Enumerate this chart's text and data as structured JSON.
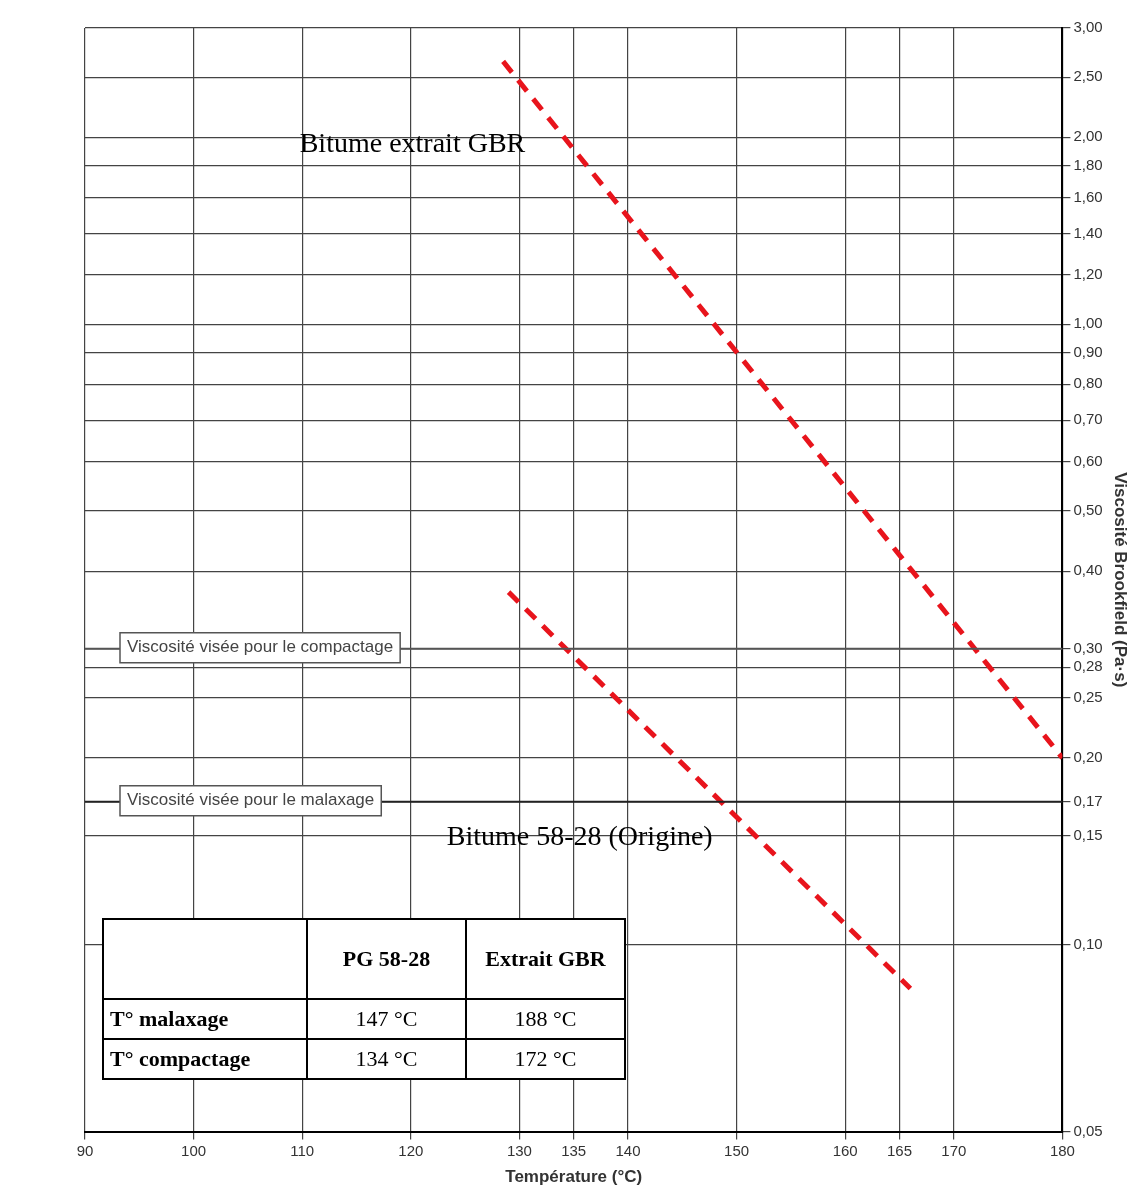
{
  "chart_data": {
    "type": "line",
    "xlabel": "Température (°C)",
    "ylabel": "Viscosité Brookfield (Pa·s)",
    "series": [
      {
        "name": "Bitume extrait GBR",
        "color": "#e8141c",
        "x": [
          128.5,
          180
        ],
        "values": [
          2.65,
          0.2
        ]
      },
      {
        "name": "Bitume 58-28 (Origine)",
        "color": "#e8141c",
        "x": [
          129,
          166
        ],
        "values": [
          0.37,
          0.085
        ]
      }
    ],
    "xlim": [
      90,
      180
    ],
    "xticks": [
      90,
      100,
      110,
      120,
      130,
      135,
      140,
      150,
      160,
      165,
      170,
      180
    ],
    "ylim": [
      0.05,
      3
    ],
    "yticks": [
      {
        "value": 3,
        "label": "3,00"
      },
      {
        "value": 2.5,
        "label": "2,50"
      },
      {
        "value": 2,
        "label": "2,00"
      },
      {
        "value": 1.8,
        "label": "1,80"
      },
      {
        "value": 1.6,
        "label": "1,60"
      },
      {
        "value": 1.4,
        "label": "1,40"
      },
      {
        "value": 1.2,
        "label": "1,20"
      },
      {
        "value": 1,
        "label": "1,00"
      },
      {
        "value": 0.9,
        "label": "0,90"
      },
      {
        "value": 0.8,
        "label": "0,80"
      },
      {
        "value": 0.7,
        "label": "0,70"
      },
      {
        "value": 0.6,
        "label": "0,60"
      },
      {
        "value": 0.5,
        "label": "0,50"
      },
      {
        "value": 0.4,
        "label": "0,40"
      },
      {
        "value": 0.3,
        "label": "0,30"
      },
      {
        "value": 0.28,
        "label": "0,28"
      },
      {
        "value": 0.25,
        "label": "0,25"
      },
      {
        "value": 0.2,
        "label": "0,20"
      },
      {
        "value": 0.17,
        "label": "0,17"
      },
      {
        "value": 0.15,
        "label": "0,15"
      },
      {
        "value": 0.1,
        "label": "0,10"
      },
      {
        "value": 0.05,
        "label": "0,05"
      }
    ],
    "log": "y",
    "grid": true,
    "legend": false,
    "marker": "none",
    "line_style": "dashed",
    "ref_lines": [
      {
        "axis": "y",
        "value": 0.3,
        "label": "Viscosité visée pour le compactage",
        "color": "#555555"
      },
      {
        "axis": "y",
        "value": 0.17,
        "label": "Viscosité visée pour le malaxage",
        "color": "#222222"
      }
    ],
    "annotations": [
      "PG 58-28",
      "Extrait GBR",
      "T° malaxage",
      "147 °C",
      "188 °C",
      "T° compactage",
      "134 °C",
      "172 °C"
    ]
  }
}
